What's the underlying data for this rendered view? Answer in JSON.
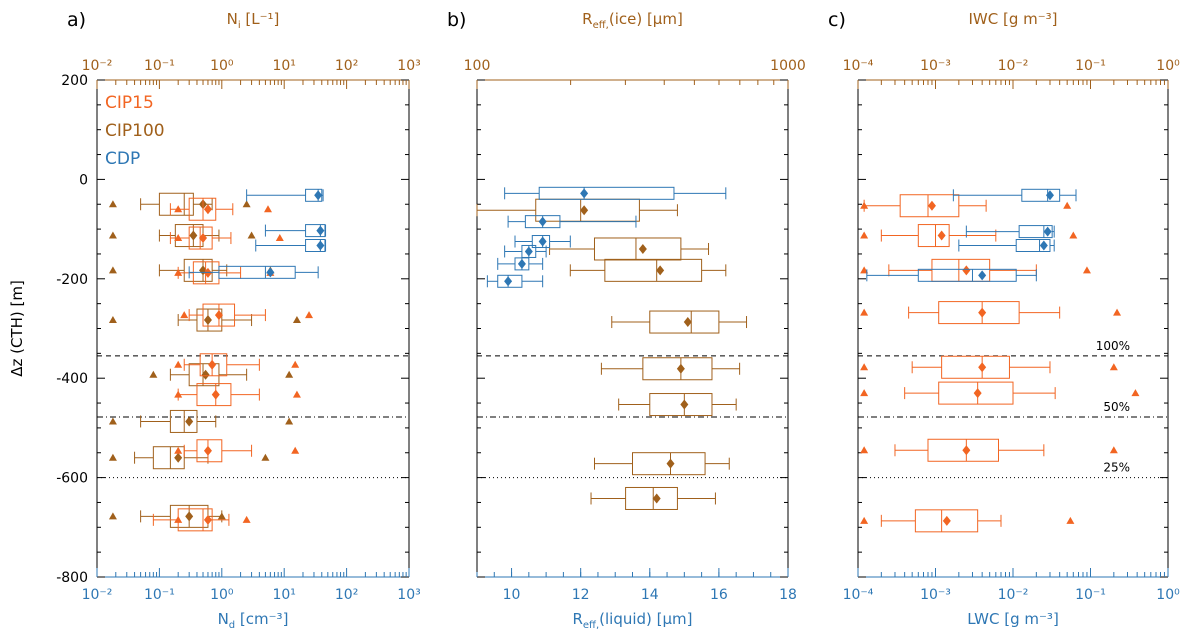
{
  "colors": {
    "cip15": "#F26522",
    "cip100": "#A0601B",
    "cdp": "#2E77B4",
    "black": "#000000"
  },
  "legend": [
    {
      "label": "CIP15",
      "key": "cip15"
    },
    {
      "label": "CIP100",
      "key": "cip100"
    },
    {
      "label": "CDP",
      "key": "cdp"
    }
  ],
  "y_axis": {
    "ticks": [
      "200",
      "0",
      "-200",
      "-400",
      "-600",
      "-800"
    ],
    "label": "Δz (CTH) [m]"
  },
  "thresholds": [
    {
      "label": "100%",
      "y": -355,
      "style": "dashed"
    },
    {
      "label": "50%",
      "y": -478,
      "style": "dashdot"
    },
    {
      "label": "25%",
      "y": -600,
      "style": "dotted"
    }
  ],
  "chart_data": [
    {
      "type": "box",
      "panel_letter": "a)",
      "top_axis": {
        "label": "N_i [L⁻¹]",
        "scale": "log",
        "range": [
          0.01,
          1000
        ],
        "tick_labels": [
          "10⁻²",
          "10⁻¹",
          "10⁰",
          "10¹",
          "10²",
          "10³"
        ]
      },
      "bottom_axis": {
        "label": "N_d [cm⁻³]",
        "scale": "log",
        "range": [
          0.01,
          1000
        ],
        "tick_labels": [
          "10⁻²",
          "10⁻¹",
          "10⁰",
          "10¹",
          "10²",
          "10³"
        ]
      },
      "y_range": [
        -800,
        200
      ],
      "series": [
        {
          "name": "CIP100",
          "key": "cip100",
          "boxes": [
            {
              "y": -50,
              "wlo": 0.05,
              "q1": 0.1,
              "med": 0.25,
              "q3": 0.35,
              "whi": 0.7,
              "mean": 0.5,
              "min": 0.018,
              "max": 2.5
            },
            {
              "y": -113,
              "wlo": 0.1,
              "q1": 0.18,
              "med": 0.35,
              "q3": 0.5,
              "whi": 0.9,
              "mean": 0.35,
              "min": 0.018,
              "max": 3.0
            },
            {
              "y": -183,
              "wlo": 0.1,
              "q1": 0.25,
              "med": 0.5,
              "q3": 0.7,
              "whi": 1.2,
              "mean": 0.5,
              "min": 0.018,
              "max": 6.0
            },
            {
              "y": -283,
              "wlo": 0.2,
              "q1": 0.4,
              "med": 0.6,
              "q3": 1.0,
              "whi": 3.0,
              "mean": 0.6,
              "min": 0.018,
              "max": 16
            },
            {
              "y": -393,
              "wlo": 0.15,
              "q1": 0.3,
              "med": 0.5,
              "q3": 0.9,
              "whi": 2.5,
              "mean": 0.55,
              "min": 0.08,
              "max": 12
            },
            {
              "y": -487,
              "wlo": 0.05,
              "q1": 0.15,
              "med": 0.25,
              "q3": 0.4,
              "whi": 0.8,
              "mean": 0.3,
              "min": 0.018,
              "max": 12
            },
            {
              "y": -560,
              "wlo": 0.04,
              "q1": 0.08,
              "med": 0.15,
              "q3": 0.25,
              "whi": 0.6,
              "mean": 0.2,
              "min": 0.018,
              "max": 5.0
            },
            {
              "y": -678,
              "wlo": 0.05,
              "q1": 0.15,
              "med": 0.3,
              "q3": 0.6,
              "whi": 1.0,
              "mean": 0.3,
              "min": 0.018,
              "max": 1.0
            }
          ]
        },
        {
          "name": "CIP15",
          "key": "cip15",
          "boxes": [
            {
              "y": -60,
              "wlo": 0.15,
              "q1": 0.3,
              "med": 0.5,
              "q3": 0.8,
              "whi": 1.5,
              "mean": 0.6,
              "min": 0.2,
              "max": 5.5
            },
            {
              "y": -118,
              "wlo": 0.15,
              "q1": 0.3,
              "med": 0.45,
              "q3": 0.7,
              "whi": 1.4,
              "mean": 0.5,
              "min": 0.2,
              "max": 8.5
            },
            {
              "y": -188,
              "wlo": 0.2,
              "q1": 0.35,
              "med": 0.55,
              "q3": 0.9,
              "whi": 2.0,
              "mean": 0.6,
              "min": 0.2,
              "max": 6.0
            },
            {
              "y": -273,
              "wlo": 0.3,
              "q1": 0.5,
              "med": 0.9,
              "q3": 1.6,
              "whi": 5.0,
              "mean": 0.9,
              "min": 0.25,
              "max": 25
            },
            {
              "y": -373,
              "wlo": 0.25,
              "q1": 0.45,
              "med": 0.7,
              "q3": 1.2,
              "whi": 4.0,
              "mean": 0.7,
              "min": 0.2,
              "max": 15
            },
            {
              "y": -433,
              "wlo": 0.2,
              "q1": 0.4,
              "med": 0.8,
              "q3": 1.4,
              "whi": 4.0,
              "mean": 0.8,
              "min": 0.2,
              "max": 16
            },
            {
              "y": -546,
              "wlo": 0.25,
              "q1": 0.4,
              "med": 0.6,
              "q3": 1.0,
              "whi": 3.0,
              "mean": 0.6,
              "min": 0.2,
              "max": 15
            },
            {
              "y": -685,
              "wlo": 0.08,
              "q1": 0.2,
              "med": 0.5,
              "q3": 0.7,
              "whi": 1.3,
              "mean": 0.6,
              "min": 0.2,
              "max": 2.5
            }
          ]
        },
        {
          "name": "CDP",
          "key": "cdp",
          "boxes": [
            {
              "y": -32,
              "wlo": 2.5,
              "q1": 22,
              "med": 35,
              "q3": 40,
              "whi": 42,
              "mean": 35,
              "min": null,
              "max": null
            },
            {
              "y": -103,
              "wlo": 5,
              "q1": 22,
              "med": 38,
              "q3": 45,
              "whi": 46,
              "mean": 38,
              "min": null,
              "max": null
            },
            {
              "y": -133,
              "wlo": 3.5,
              "q1": 22,
              "med": 38,
              "q3": 45,
              "whi": 46,
              "mean": 38,
              "min": null,
              "max": null
            },
            {
              "y": -187,
              "wlo": 0.3,
              "q1": 0.9,
              "med": 5,
              "q3": 15,
              "whi": 35,
              "mean": 6,
              "min": null,
              "max": null
            }
          ]
        }
      ]
    },
    {
      "type": "box",
      "panel_letter": "b)",
      "top_axis": {
        "label": "R_eff,(ice) [μm]",
        "scale": "log",
        "range": [
          100,
          1000
        ],
        "tick_labels": [
          "100",
          "1000"
        ]
      },
      "bottom_axis": {
        "label": "R_eff,(liquid) [μm]",
        "scale": "linear",
        "range": [
          9,
          18
        ],
        "tick_labels": [
          "10",
          "12",
          "14",
          "16",
          "18"
        ]
      },
      "y_range": [
        -800,
        200
      ],
      "series": [
        {
          "name": "CIP100",
          "key": "cip100",
          "boxes": [
            {
              "y": -62,
              "wlo": 9.0,
              "q1": 10.7,
              "med": 12.0,
              "q3": 13.7,
              "whi": 14.8,
              "mean": 12.1
            },
            {
              "y": -140,
              "wlo": 11.1,
              "q1": 12.4,
              "med": 13.6,
              "q3": 14.9,
              "whi": 15.7,
              "mean": 13.8
            },
            {
              "y": -183,
              "wlo": 11.7,
              "q1": 12.7,
              "med": 14.2,
              "q3": 15.5,
              "whi": 16.2,
              "mean": 14.3
            },
            {
              "y": -287,
              "wlo": 12.9,
              "q1": 14.0,
              "med": 15.2,
              "q3": 16.0,
              "whi": 16.8,
              "mean": 15.1
            },
            {
              "y": -381,
              "wlo": 12.6,
              "q1": 13.8,
              "med": 14.9,
              "q3": 15.8,
              "whi": 16.6,
              "mean": 14.9
            },
            {
              "y": -453,
              "wlo": 13.1,
              "q1": 14.0,
              "med": 15.0,
              "q3": 15.8,
              "whi": 16.5,
              "mean": 15.0
            },
            {
              "y": -572,
              "wlo": 12.4,
              "q1": 13.5,
              "med": 14.6,
              "q3": 15.6,
              "whi": 16.3,
              "mean": 14.6
            },
            {
              "y": -642,
              "wlo": 12.3,
              "q1": 13.3,
              "med": 14.1,
              "q3": 14.8,
              "whi": 15.9,
              "mean": 14.2
            }
          ]
        },
        {
          "name": "CDP",
          "key": "cdp",
          "boxes": [
            {
              "y": -28,
              "wlo": 9.8,
              "q1": 10.8,
              "med": 12.1,
              "q3": 14.7,
              "whi": 16.2,
              "mean": 12.1
            },
            {
              "y": -85,
              "wlo": 9.9,
              "q1": 10.4,
              "med": 10.9,
              "q3": 11.4,
              "whi": 13.6,
              "mean": 10.9
            },
            {
              "y": -125,
              "wlo": 10.1,
              "q1": 10.6,
              "med": 10.9,
              "q3": 11.1,
              "whi": 11.7,
              "mean": 10.9
            },
            {
              "y": -145,
              "wlo": 9.8,
              "q1": 10.3,
              "med": 10.5,
              "q3": 10.7,
              "whi": 11.0,
              "mean": 10.5
            },
            {
              "y": -170,
              "wlo": 9.6,
              "q1": 10.1,
              "med": 10.3,
              "q3": 10.5,
              "whi": 10.9,
              "mean": 10.3
            },
            {
              "y": -205,
              "wlo": 9.3,
              "q1": 9.6,
              "med": 9.9,
              "q3": 10.3,
              "whi": 10.9,
              "mean": 9.9
            }
          ]
        }
      ]
    },
    {
      "type": "box",
      "panel_letter": "c)",
      "top_axis": {
        "label": "IWC [g m⁻³]",
        "scale": "log",
        "range": [
          0.0001,
          1
        ],
        "tick_labels": [
          "10⁻⁴",
          "10⁻³",
          "10⁻²",
          "10⁻¹",
          "10⁰"
        ]
      },
      "bottom_axis": {
        "label": "LWC [g m⁻³]",
        "scale": "log",
        "range": [
          0.0001,
          1
        ],
        "tick_labels": [
          "10⁻⁴",
          "10⁻³",
          "10⁻²",
          "10⁻¹",
          "10⁰"
        ]
      },
      "y_range": [
        -800,
        200
      ],
      "series": [
        {
          "name": "CIP15",
          "key": "cip15",
          "boxes": [
            {
              "y": -53,
              "wlo": 0.00012,
              "q1": 0.00035,
              "med": 0.0008,
              "q3": 0.002,
              "whi": 0.0045,
              "mean": 0.0009,
              "min": 0.00012,
              "max": 0.05
            },
            {
              "y": -113,
              "wlo": 0.0002,
              "q1": 0.0006,
              "med": 0.001,
              "q3": 0.0015,
              "whi": 0.006,
              "mean": 0.0012,
              "min": 0.00012,
              "max": 0.06
            },
            {
              "y": -183,
              "wlo": 0.00025,
              "q1": 0.0009,
              "med": 0.002,
              "q3": 0.005,
              "whi": 0.02,
              "mean": 0.0025,
              "min": 0.00012,
              "max": 0.09
            },
            {
              "y": -268,
              "wlo": 0.00045,
              "q1": 0.0011,
              "med": 0.004,
              "q3": 0.012,
              "whi": 0.04,
              "mean": 0.004,
              "min": 0.00012,
              "max": 0.22
            },
            {
              "y": -378,
              "wlo": 0.0005,
              "q1": 0.0012,
              "med": 0.004,
              "q3": 0.009,
              "whi": 0.03,
              "mean": 0.004,
              "min": 0.00012,
              "max": 0.2
            },
            {
              "y": -430,
              "wlo": 0.0004,
              "q1": 0.0011,
              "med": 0.0035,
              "q3": 0.01,
              "whi": 0.035,
              "mean": 0.0035,
              "min": 0.00012,
              "max": 0.38
            },
            {
              "y": -545,
              "wlo": 0.0003,
              "q1": 0.0008,
              "med": 0.0025,
              "q3": 0.0065,
              "whi": 0.025,
              "mean": 0.0025,
              "min": 0.00012,
              "max": 0.2
            },
            {
              "y": -687,
              "wlo": 0.0002,
              "q1": 0.00055,
              "med": 0.0012,
              "q3": 0.0035,
              "whi": 0.007,
              "mean": 0.0014,
              "min": 0.00012,
              "max": 0.055
            }
          ]
        },
        {
          "name": "CDP",
          "key": "cdp",
          "boxes": [
            {
              "y": -32,
              "wlo": 0.0017,
              "q1": 0.013,
              "med": 0.028,
              "q3": 0.04,
              "whi": 0.065,
              "mean": 0.03
            },
            {
              "y": -105,
              "wlo": 0.0025,
              "q1": 0.012,
              "med": 0.025,
              "q3": 0.032,
              "whi": 0.034,
              "mean": 0.028
            },
            {
              "y": -133,
              "wlo": 0.002,
              "q1": 0.011,
              "med": 0.022,
              "q3": 0.03,
              "whi": 0.034,
              "mean": 0.025
            },
            {
              "y": -193,
              "wlo": 0.00013,
              "q1": 0.0006,
              "med": 0.003,
              "q3": 0.011,
              "whi": 0.02,
              "mean": 0.004
            }
          ]
        }
      ]
    }
  ]
}
